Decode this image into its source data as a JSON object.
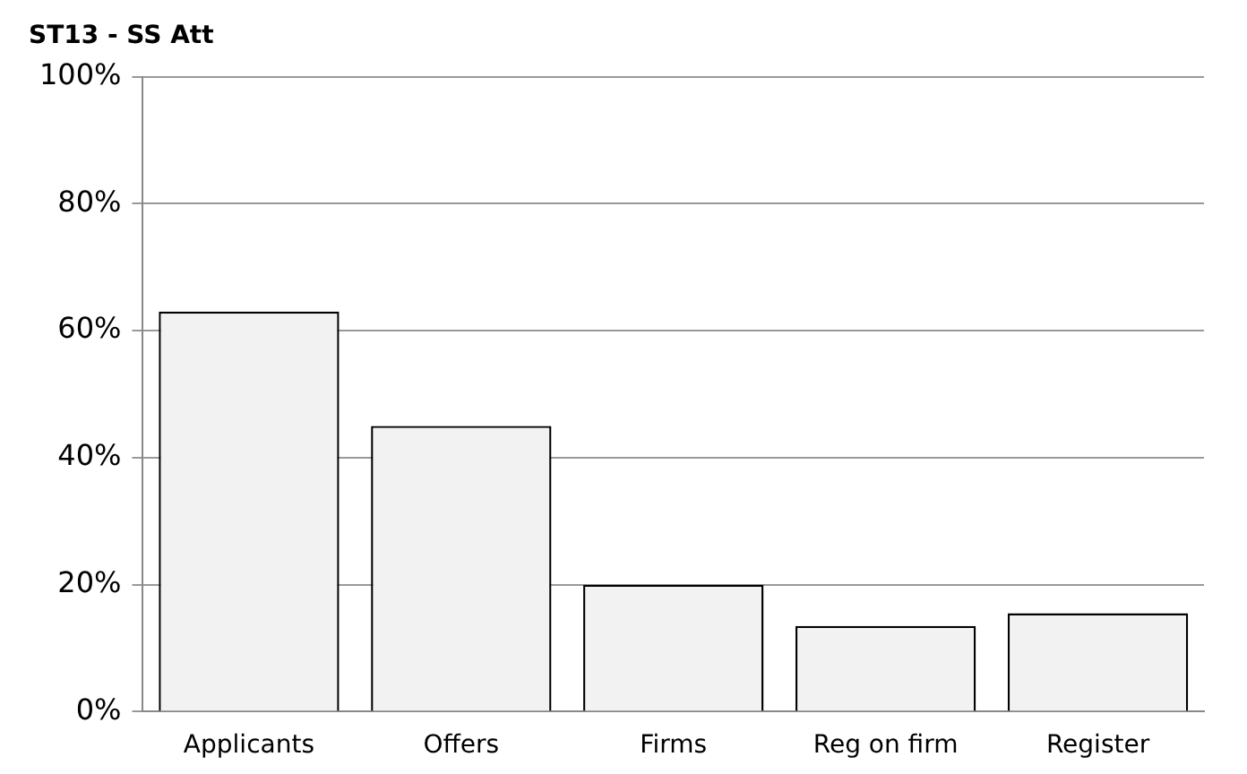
{
  "chart_data": {
    "type": "bar",
    "title": "ST13 - SS Att",
    "categories": [
      "Applicants",
      "Offers",
      "Firms",
      "Reg on firm",
      "Register"
    ],
    "values": [
      0.63,
      0.45,
      0.2,
      0.135,
      0.155
    ],
    "color": "#f2f2f2",
    "ylim": [
      0,
      1
    ],
    "yticks": [
      {
        "value": 0,
        "label": "0%"
      },
      {
        "value": 0.2,
        "label": "20%"
      },
      {
        "value": 0.4,
        "label": "40%"
      },
      {
        "value": 0.6,
        "label": "60%"
      },
      {
        "value": 0.8,
        "label": "80%"
      },
      {
        "value": 1,
        "label": "100%"
      }
    ],
    "grid": "y",
    "legend": false
  }
}
